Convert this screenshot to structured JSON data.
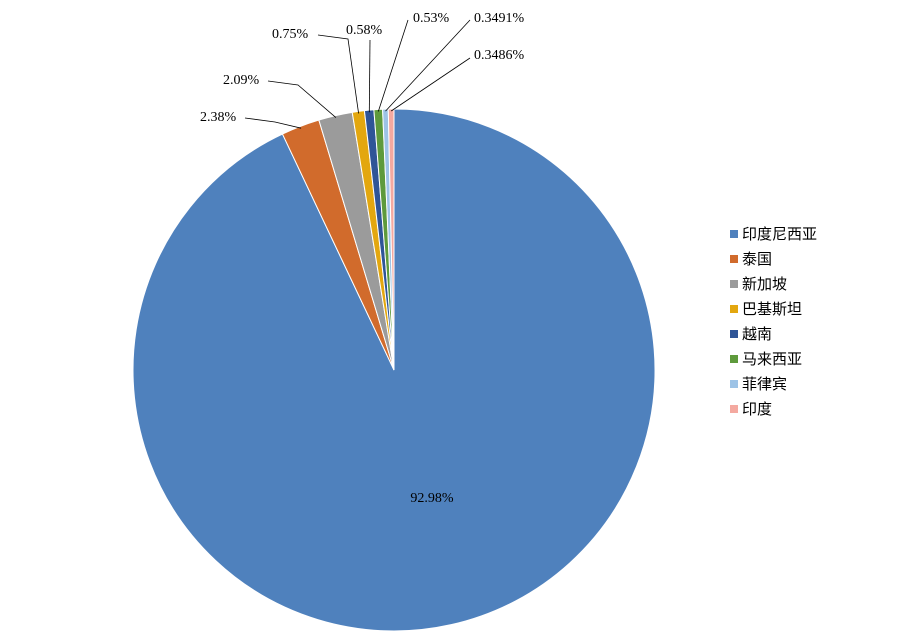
{
  "chart_data": {
    "type": "pie",
    "title": "",
    "legend_position": "right",
    "start_angle_deg": 0,
    "direction": "clockwise",
    "slices": [
      {
        "name": "印度尼西亚",
        "value": 92.98,
        "label": "92.98%",
        "color": "#4F81BD"
      },
      {
        "name": "泰国",
        "value": 2.38,
        "label": "2.38%",
        "color": "#D16B2C"
      },
      {
        "name": "新加坡",
        "value": 2.09,
        "label": "2.09%",
        "color": "#9B9B9B"
      },
      {
        "name": "巴基斯坦",
        "value": 0.75,
        "label": "0.75%",
        "color": "#E3A70F"
      },
      {
        "name": "越南",
        "value": 0.58,
        "label": "0.58%",
        "color": "#2F5597"
      },
      {
        "name": "马来西亚",
        "value": 0.53,
        "label": "0.53%",
        "color": "#5E9A3C"
      },
      {
        "name": "菲律宾",
        "value": 0.3491,
        "label": "0.3491%",
        "color": "#9DC3E6"
      },
      {
        "name": "印度",
        "value": 0.3486,
        "label": "0.3486%",
        "color": "#F4A9A0"
      }
    ]
  }
}
